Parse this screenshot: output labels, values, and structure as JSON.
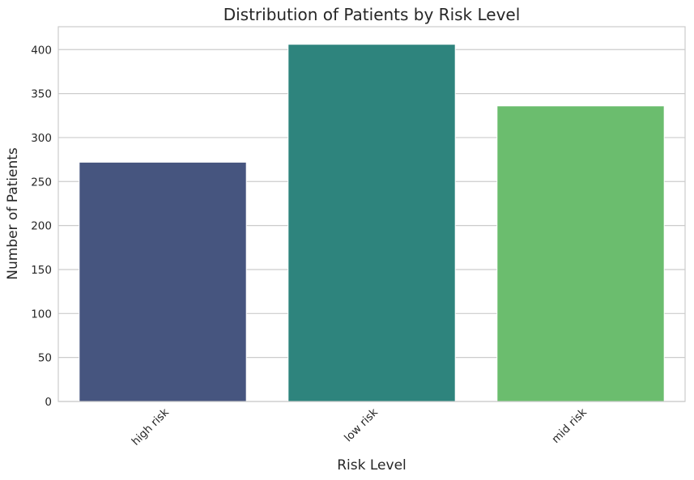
{
  "chart_data": {
    "type": "bar",
    "title": "Distribution of Patients by Risk Level",
    "xlabel": "Risk Level",
    "ylabel": "Number of Patients",
    "categories": [
      "high risk",
      "low risk",
      "mid risk"
    ],
    "values": [
      272,
      406,
      336
    ],
    "colors": [
      "#46557f",
      "#2e847d",
      "#6bbd6e"
    ],
    "ylim": [
      0,
      426
    ],
    "yticks": [
      0,
      50,
      100,
      150,
      200,
      250,
      300,
      350,
      400
    ],
    "grid": true,
    "legend": "none"
  }
}
